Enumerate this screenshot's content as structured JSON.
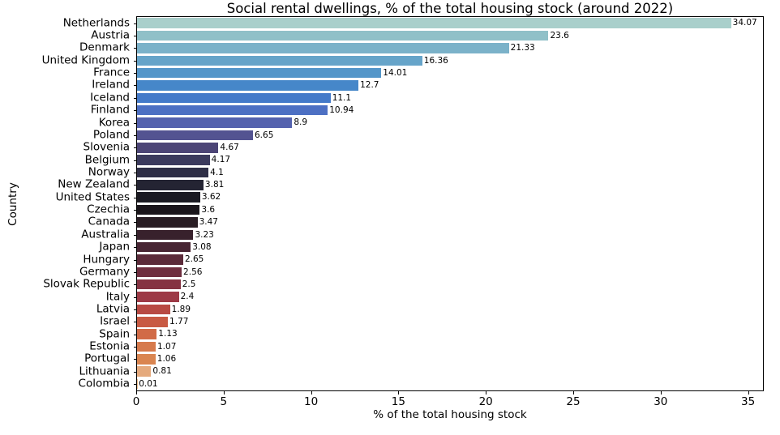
{
  "chart_data": {
    "type": "bar",
    "orientation": "horizontal",
    "title": "Social rental dwellings, % of the total housing stock (around 2022)",
    "xlabel": "% of the total housing stock",
    "ylabel": "Country",
    "xlim": [
      0,
      35.9
    ],
    "xticks": [
      "0",
      "5",
      "10",
      "15",
      "20",
      "25",
      "30",
      "35"
    ],
    "xtick_values": [
      0,
      5,
      10,
      15,
      20,
      25,
      30,
      35
    ],
    "grid": false,
    "legend": "none",
    "categories": [
      "Netherlands",
      "Austria",
      "Denmark",
      "United Kingdom",
      "France",
      "Ireland",
      "Iceland",
      "Finland",
      "Korea",
      "Poland",
      "Slovenia",
      "Belgium",
      "Norway",
      "New Zealand",
      "United States",
      "Czechia",
      "Canada",
      "Australia",
      "Japan",
      "Hungary",
      "Germany",
      "Slovak Republic",
      "Italy",
      "Latvia",
      "Israel",
      "Spain",
      "Estonia",
      "Portugal",
      "Lithuania",
      "Colombia"
    ],
    "values": [
      34.07,
      23.6,
      21.33,
      16.36,
      14.01,
      12.7,
      11.1,
      10.94,
      8.9,
      6.65,
      4.67,
      4.17,
      4.1,
      3.81,
      3.62,
      3.6,
      3.47,
      3.23,
      3.08,
      2.65,
      2.56,
      2.5,
      2.4,
      1.89,
      1.77,
      1.13,
      1.07,
      1.06,
      0.81,
      0.01
    ],
    "value_labels": [
      "34.07",
      "23.6",
      "21.33",
      "16.36",
      "14.01",
      "12.7",
      "11.1",
      "10.94",
      "8.9",
      "6.65",
      "4.67",
      "4.17",
      "4.1",
      "3.81",
      "3.62",
      "3.6",
      "3.47",
      "3.23",
      "3.08",
      "2.65",
      "2.56",
      "2.5",
      "2.4",
      "1.89",
      "1.77",
      "1.13",
      "1.07",
      "1.06",
      "0.81",
      "0.01"
    ],
    "bar_colors": [
      "#a9cfcb",
      "#90c0c8",
      "#7bb2c9",
      "#66a4c9",
      "#5496c9",
      "#4687c9",
      "#447ac9",
      "#4d70c3",
      "#5462ae",
      "#535391",
      "#4c4576",
      "#3b3a5d",
      "#2e2e46",
      "#242433",
      "#1b1a22",
      "#1a151b",
      "#291d24",
      "#38212c",
      "#482533",
      "#5b2a39",
      "#6f2e3f",
      "#853342",
      "#9d3a46",
      "#b84a43",
      "#c85a43",
      "#d16b47",
      "#d67a4c",
      "#da8550",
      "#e5aa7d",
      "#edbd8a"
    ],
    "spine_color": "#000000",
    "background_color": "#ffffff"
  }
}
